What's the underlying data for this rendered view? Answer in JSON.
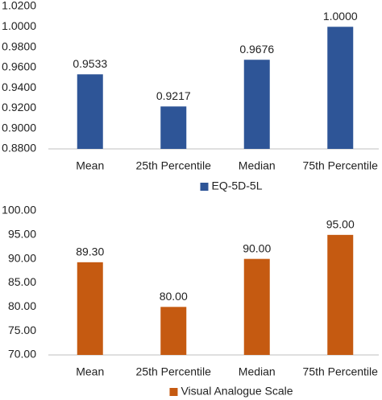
{
  "chart_data": [
    {
      "type": "bar",
      "categories": [
        "Mean",
        "25th Percentile",
        "Median",
        "75th Percentile"
      ],
      "series": [
        {
          "name": "EQ-5D-5L",
          "color": "#2e5597",
          "values": [
            0.9533,
            0.9217,
            0.9676,
            1.0
          ],
          "value_labels": [
            "0.9533",
            "0.9217",
            "0.9676",
            "1.0000"
          ]
        }
      ],
      "ylim": [
        0.88,
        1.02
      ],
      "yticks": [
        {
          "value": 0.88,
          "label": "0.8800"
        },
        {
          "value": 0.9,
          "label": "0.9000"
        },
        {
          "value": 0.92,
          "label": "0.9200"
        },
        {
          "value": 0.94,
          "label": "0.9400"
        },
        {
          "value": 0.96,
          "label": "0.9600"
        },
        {
          "value": 0.98,
          "label": "0.9800"
        },
        {
          "value": 1.0,
          "label": "1.0000"
        },
        {
          "value": 1.02,
          "label": "1.0200"
        }
      ],
      "legend": "bottom"
    },
    {
      "type": "bar",
      "categories": [
        "Mean",
        "25th Percentile",
        "Median",
        "75th Percentile"
      ],
      "series": [
        {
          "name": "Visual Analogue Scale",
          "color": "#c55a11",
          "values": [
            89.3,
            80,
            90,
            95
          ],
          "value_labels": [
            "89.30",
            "80.00",
            "90.00",
            "95.00"
          ]
        }
      ],
      "ylim": [
        70,
        100
      ],
      "yticks": [
        {
          "value": 70,
          "label": "70.00"
        },
        {
          "value": 75,
          "label": "75.00"
        },
        {
          "value": 80,
          "label": "80.00"
        },
        {
          "value": 85,
          "label": "85.00"
        },
        {
          "value": 90,
          "label": "90.00"
        },
        {
          "value": 95,
          "label": "95.00"
        },
        {
          "value": 100,
          "label": "100.00"
        }
      ],
      "legend": "bottom"
    }
  ]
}
